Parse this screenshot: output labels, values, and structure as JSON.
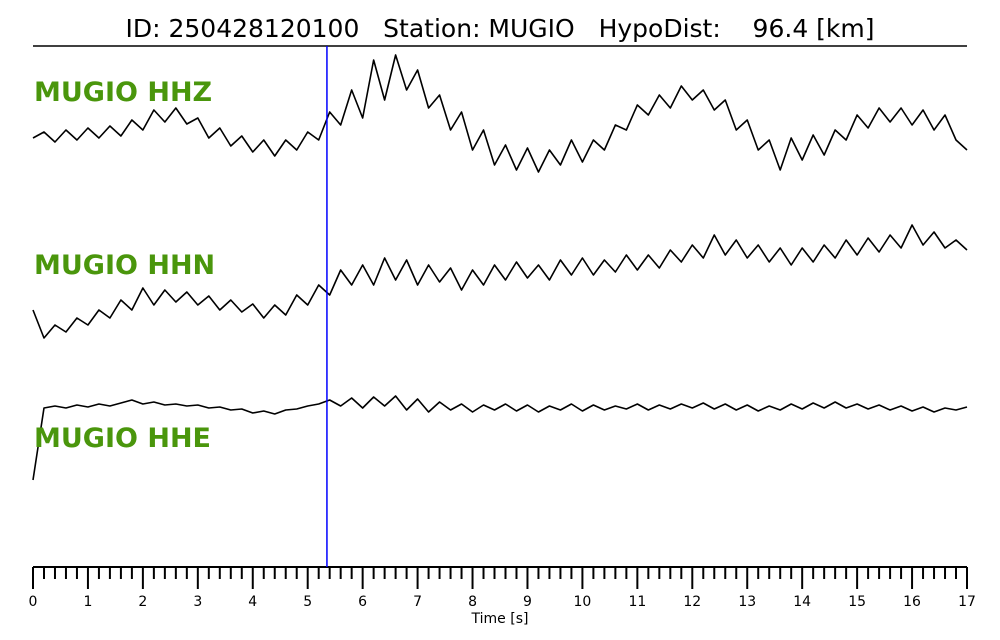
{
  "chart_data": {
    "type": "line",
    "title": "ID: 250428120100   Station: MUGIO   HypoDist:    96.4 [km]",
    "xlabel": "Time [s]",
    "xlim": [
      0,
      17
    ],
    "xticks": [
      0,
      1,
      2,
      3,
      4,
      5,
      6,
      7,
      8,
      9,
      10,
      11,
      12,
      13,
      14,
      15,
      16,
      17
    ],
    "xminorticks": [
      0.2,
      0.4,
      0.6,
      0.8,
      1.2,
      1.4,
      1.6,
      1.8,
      2.2,
      2.4,
      2.6,
      2.8,
      3.2,
      3.4,
      3.6,
      3.8,
      4.2,
      4.4,
      4.6,
      4.8,
      5.2,
      5.4,
      5.6,
      5.8,
      6.2,
      6.4,
      6.6,
      6.8,
      7.2,
      7.4,
      7.6,
      7.8,
      8.2,
      8.4,
      8.6,
      8.8,
      9.2,
      9.4,
      9.6,
      9.8,
      10.2,
      10.4,
      10.6,
      10.8,
      11.2,
      11.4,
      11.6,
      11.8,
      12.2,
      12.4,
      12.6,
      12.8,
      13.2,
      13.4,
      13.6,
      13.8,
      14.2,
      14.4,
      14.6,
      14.8,
      15.2,
      15.4,
      15.6,
      15.8,
      16.2,
      16.4,
      16.6,
      16.8
    ],
    "x": [
      0,
      0.2,
      0.4,
      0.6,
      0.8,
      1,
      1.2,
      1.4,
      1.6,
      1.8,
      2,
      2.2,
      2.4,
      2.6,
      2.8,
      3,
      3.2,
      3.4,
      3.6,
      3.8,
      4,
      4.2,
      4.4,
      4.6,
      4.8,
      5,
      5.2,
      5.4,
      5.6,
      5.8,
      6,
      6.2,
      6.4,
      6.6,
      6.8,
      7,
      7.2,
      7.4,
      7.6,
      7.8,
      8,
      8.2,
      8.4,
      8.6,
      8.8,
      9,
      9.2,
      9.4,
      9.6,
      9.8,
      10,
      10.2,
      10.4,
      10.6,
      10.8,
      11,
      11.2,
      11.4,
      11.6,
      11.8,
      12,
      12.2,
      12.4,
      12.6,
      12.8,
      13,
      13.2,
      13.4,
      13.6,
      13.8,
      14,
      14.2,
      14.4,
      14.6,
      14.8,
      15,
      15.2,
      15.4,
      15.6,
      15.8,
      16,
      16.2,
      16.4,
      16.6,
      16.8,
      17
    ],
    "label_color": "#4a960c",
    "series": [
      {
        "name": "MUGIO HHZ",
        "color": "#000000",
        "ylim": [
          -70,
          70
        ],
        "values": [
          -24,
          -18,
          -28,
          -16,
          -26,
          -14,
          -24,
          -12,
          -22,
          -6,
          -16,
          4,
          -8,
          6,
          -10,
          -4,
          -24,
          -14,
          -32,
          -22,
          -38,
          -26,
          -42,
          -26,
          -36,
          -18,
          -26,
          2,
          -11,
          24,
          -4,
          54,
          14,
          59,
          24,
          44,
          6,
          19,
          -16,
          2,
          -36,
          -16,
          -51,
          -31,
          -56,
          -34,
          -58,
          -36,
          -51,
          -26,
          -48,
          -26,
          -36,
          -11,
          -16,
          9,
          -1,
          19,
          6,
          28,
          14,
          24,
          4,
          14,
          -16,
          -6,
          -36,
          -26,
          -56,
          -24,
          -46,
          -21,
          -41,
          -16,
          -26,
          -1,
          -14,
          6,
          -8,
          6,
          -11,
          4,
          -16,
          -1,
          -26,
          -36
        ]
      },
      {
        "name": "MUGIO HHN",
        "color": "#000000",
        "ylim": [
          -70,
          70
        ],
        "values": [
          -27,
          -55,
          -42,
          -49,
          -35,
          -42,
          -27,
          -35,
          -17,
          -27,
          -5,
          -22,
          -7,
          -19,
          -9,
          -22,
          -13,
          -27,
          -17,
          -29,
          -21,
          -35,
          -22,
          -32,
          -12,
          -22,
          -2,
          -12,
          13,
          -2,
          18,
          -2,
          25,
          3,
          23,
          -2,
          18,
          1,
          15,
          -7,
          13,
          -2,
          18,
          3,
          21,
          5,
          18,
          3,
          23,
          8,
          25,
          8,
          23,
          11,
          28,
          13,
          28,
          15,
          33,
          21,
          38,
          25,
          48,
          28,
          43,
          25,
          38,
          21,
          35,
          18,
          35,
          21,
          38,
          25,
          43,
          28,
          45,
          31,
          48,
          35,
          58,
          38,
          51,
          35,
          43,
          33
        ]
      },
      {
        "name": "MUGIO HHE",
        "color": "#000000",
        "ylim": [
          -70,
          70
        ],
        "values": [
          -28,
          44,
          46,
          44,
          47,
          45,
          48,
          46,
          49,
          52,
          48,
          50,
          47,
          48,
          46,
          47,
          44,
          45,
          42,
          43,
          39,
          41,
          38,
          42,
          43,
          46,
          48,
          52,
          46,
          54,
          44,
          55,
          46,
          56,
          42,
          53,
          40,
          50,
          42,
          48,
          40,
          47,
          42,
          48,
          41,
          47,
          40,
          46,
          42,
          48,
          41,
          47,
          42,
          46,
          43,
          48,
          42,
          47,
          43,
          48,
          44,
          49,
          43,
          48,
          42,
          47,
          41,
          46,
          42,
          48,
          43,
          49,
          44,
          50,
          44,
          48,
          43,
          47,
          42,
          46,
          41,
          45,
          40,
          44,
          42,
          45
        ]
      }
    ],
    "marker": {
      "x": 5.35,
      "color": "#0000ff"
    }
  }
}
